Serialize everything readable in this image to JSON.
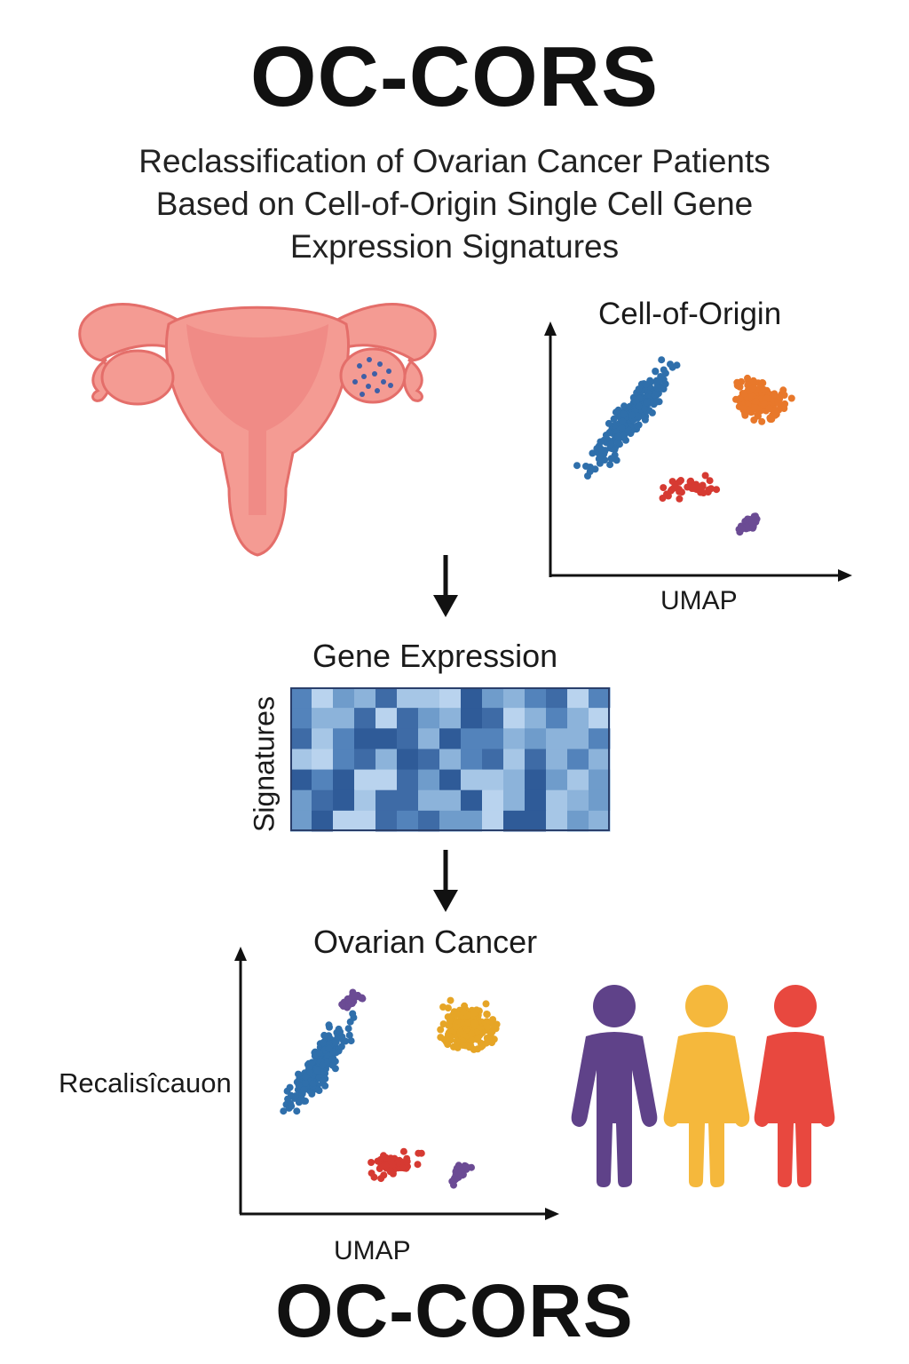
{
  "header": {
    "title": "OC-CORS",
    "subtitle_lines": [
      "Reclassification of Ovarian Cancer Patients",
      "Based on Cell-of-Origin Single Cell Gene",
      "Expression Signatures"
    ]
  },
  "umap_top": {
    "title": "Cell-of-Origin",
    "xlabel": "UMAP"
  },
  "heatmap": {
    "title": "Gene Expression",
    "ylabel": "Signatures",
    "rows": 7,
    "cols": 15
  },
  "umap_bottom": {
    "title": "Ovarian Cancer",
    "xlabel": "UMAP",
    "ylabel": "Recalisîcauon"
  },
  "footer": {
    "title": "OC-CORS"
  },
  "colors": {
    "uterus": "#f49b93",
    "uterus_dark": "#e46e6a",
    "blue": "#2f6fab",
    "orange": "#e8782b",
    "red": "#d63a32",
    "purple": "#6b4b94",
    "yellow": "#e6a526",
    "person_purple": "#5f4289",
    "person_yellow": "#f5b83c",
    "person_red": "#e8483f"
  },
  "icons": [
    "uterus-ovary-illustration",
    "down-arrow-icon",
    "person-icon"
  ]
}
